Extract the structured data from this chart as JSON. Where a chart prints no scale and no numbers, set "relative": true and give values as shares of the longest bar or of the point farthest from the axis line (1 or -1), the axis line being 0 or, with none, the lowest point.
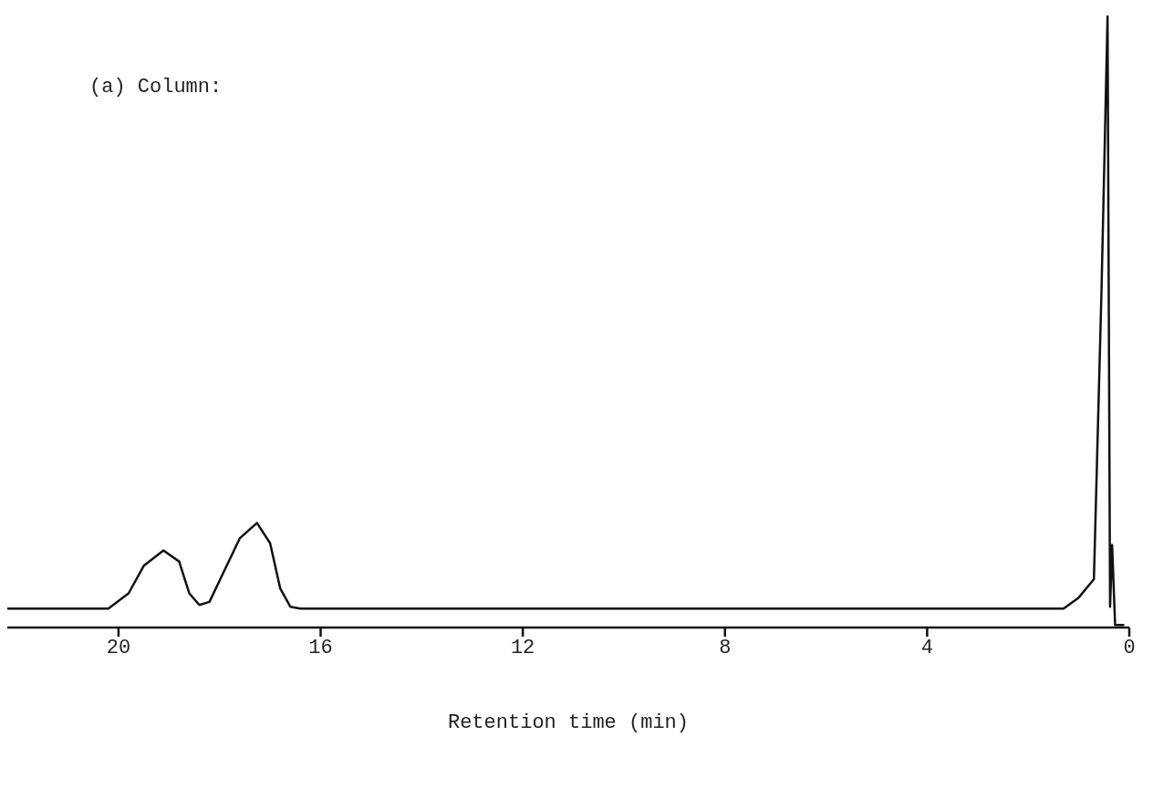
{
  "chart_data": {
    "type": "line",
    "relative": true,
    "xlabel": "Retention time (min)",
    "annotations": [
      "(a) Column:"
    ],
    "xlim": [
      22.2,
      0
    ],
    "xticks": [
      20,
      16,
      12,
      8,
      4,
      0
    ],
    "grid": false,
    "legend": false,
    "marker": "none",
    "line_style": "solid",
    "x": [
      22.2,
      20.2,
      19.8,
      19.5,
      19.11,
      18.8,
      18.6,
      18.4,
      18.2,
      17.9,
      17.6,
      17.26,
      17.0,
      16.8,
      16.6,
      16.4,
      1.3,
      1.0,
      0.7,
      0.55,
      0.43,
      0.38,
      0.34,
      0.28,
      0.1
    ],
    "series": [
      {
        "color": "#111111",
        "values": [
          0.031,
          0.031,
          0.056,
          0.101,
          0.126,
          0.108,
          0.056,
          0.037,
          0.042,
          0.094,
          0.146,
          0.171,
          0.138,
          0.064,
          0.034,
          0.031,
          0.031,
          0.049,
          0.079,
          0.55,
          1.0,
          0.034,
          0.135,
          0.004,
          0.004
        ]
      }
    ]
  }
}
